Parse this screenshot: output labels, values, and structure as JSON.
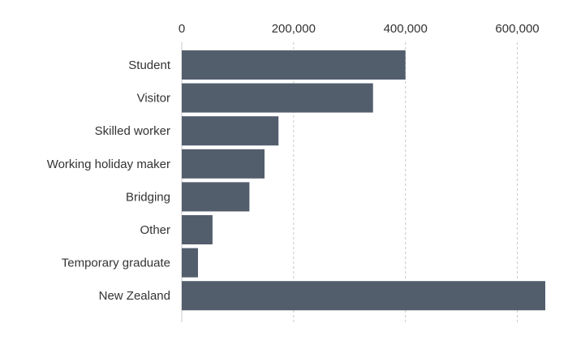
{
  "chart_data": {
    "type": "bar",
    "orientation": "horizontal",
    "categories": [
      "Student",
      "Visitor",
      "Skilled worker",
      "Working holiday maker",
      "Bridging",
      "Other",
      "Temporary graduate",
      "New Zealand"
    ],
    "values": [
      400000,
      342000,
      173000,
      148000,
      121000,
      55000,
      29000,
      650000
    ],
    "xlim": [
      0,
      650000
    ],
    "xticks": [
      0,
      200000,
      400000,
      600000
    ],
    "xtick_labels": [
      "0",
      "200,000",
      "400,000",
      "600,000"
    ],
    "title": "",
    "xlabel": "",
    "ylabel": "",
    "grid": true,
    "x_axis_position": "top",
    "colors": {
      "bar": "#535e6d",
      "grid": "#c8c8c8",
      "text": "#333333"
    }
  }
}
